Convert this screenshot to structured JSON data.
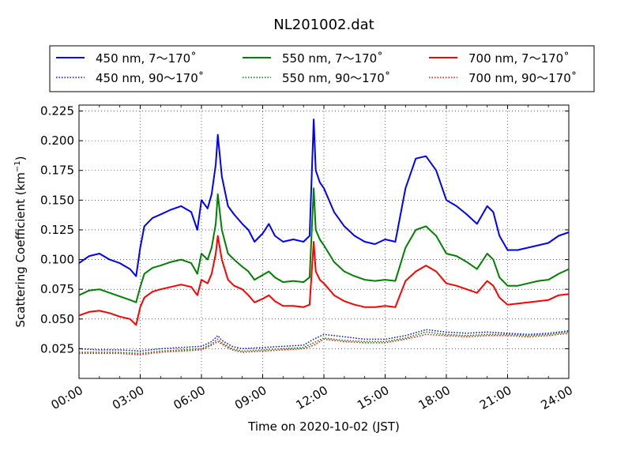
{
  "chart_data": {
    "type": "line",
    "title": "NL201002.dat",
    "xlabel": "Time on 2020-10-02 (JST)",
    "ylabel_main": "Scattering Coefficient (km",
    "ylabel_sup": "−1",
    "ylabel_end": ")",
    "xlim": [
      0,
      24
    ],
    "ylim": [
      0.0,
      0.23
    ],
    "xticks": [
      0,
      3,
      6,
      9,
      12,
      15,
      18,
      21,
      24
    ],
    "xtick_labels": [
      "00:00",
      "03:00",
      "06:00",
      "09:00",
      "12:00",
      "15:00",
      "18:00",
      "21:00",
      "24:00"
    ],
    "yticks": [
      0.025,
      0.05,
      0.075,
      0.1,
      0.125,
      0.15,
      0.175,
      0.2,
      0.225
    ],
    "ytick_labels": [
      "0.025",
      "0.050",
      "0.075",
      "0.100",
      "0.125",
      "0.150",
      "0.175",
      "0.200",
      "0.225"
    ],
    "grid": true,
    "legend_placement": "top, above plot",
    "series": [
      {
        "name": "450 nm, 7～170˚",
        "color": "#0000ff",
        "style": "solid",
        "x": [
          0,
          0.5,
          1,
          1.5,
          2,
          2.5,
          2.8,
          3.0,
          3.2,
          3.6,
          4,
          4.5,
          5,
          5.5,
          5.8,
          6,
          6.3,
          6.5,
          6.7,
          6.8,
          7,
          7.3,
          7.6,
          8,
          8.3,
          8.6,
          9,
          9.3,
          9.6,
          10,
          10.5,
          11,
          11.3,
          11.5,
          11.6,
          11.8,
          12,
          12.5,
          13,
          13.5,
          14,
          14.5,
          15,
          15.5,
          16,
          16.5,
          17,
          17.5,
          18,
          18.5,
          19,
          19.5,
          20,
          20.3,
          20.6,
          21,
          21.5,
          22,
          22.5,
          23,
          23.5,
          24
        ],
        "values": [
          0.097,
          0.103,
          0.105,
          0.1,
          0.097,
          0.092,
          0.086,
          0.11,
          0.128,
          0.135,
          0.138,
          0.142,
          0.145,
          0.14,
          0.125,
          0.15,
          0.143,
          0.155,
          0.18,
          0.205,
          0.17,
          0.145,
          0.138,
          0.13,
          0.125,
          0.115,
          0.122,
          0.13,
          0.12,
          0.115,
          0.117,
          0.115,
          0.12,
          0.218,
          0.175,
          0.165,
          0.16,
          0.14,
          0.128,
          0.12,
          0.115,
          0.113,
          0.117,
          0.115,
          0.16,
          0.185,
          0.187,
          0.175,
          0.15,
          0.145,
          0.138,
          0.13,
          0.145,
          0.14,
          0.12,
          0.108,
          0.108,
          0.11,
          0.112,
          0.114,
          0.12,
          0.123
        ]
      },
      {
        "name": "550 nm, 7～170˚",
        "color": "#008000",
        "style": "solid",
        "x": [
          0,
          0.5,
          1,
          1.5,
          2,
          2.5,
          2.8,
          3.0,
          3.2,
          3.6,
          4,
          4.5,
          5,
          5.5,
          5.8,
          6,
          6.3,
          6.5,
          6.7,
          6.8,
          7,
          7.3,
          7.6,
          8,
          8.3,
          8.6,
          9,
          9.3,
          9.6,
          10,
          10.5,
          11,
          11.3,
          11.5,
          11.6,
          11.8,
          12,
          12.5,
          13,
          13.5,
          14,
          14.5,
          15,
          15.5,
          16,
          16.5,
          17,
          17.5,
          18,
          18.5,
          19,
          19.5,
          20,
          20.3,
          20.6,
          21,
          21.5,
          22,
          22.5,
          23,
          23.5,
          24
        ],
        "values": [
          0.07,
          0.074,
          0.075,
          0.072,
          0.069,
          0.066,
          0.064,
          0.077,
          0.088,
          0.093,
          0.095,
          0.098,
          0.1,
          0.097,
          0.088,
          0.105,
          0.1,
          0.11,
          0.13,
          0.155,
          0.125,
          0.105,
          0.1,
          0.094,
          0.09,
          0.083,
          0.087,
          0.09,
          0.085,
          0.081,
          0.082,
          0.081,
          0.085,
          0.16,
          0.125,
          0.117,
          0.112,
          0.098,
          0.09,
          0.086,
          0.083,
          0.082,
          0.083,
          0.082,
          0.11,
          0.125,
          0.128,
          0.12,
          0.105,
          0.103,
          0.098,
          0.092,
          0.105,
          0.1,
          0.085,
          0.078,
          0.078,
          0.08,
          0.082,
          0.083,
          0.088,
          0.092
        ]
      },
      {
        "name": "700 nm, 7～170˚",
        "color": "#ff0000",
        "style": "solid",
        "x": [
          0,
          0.5,
          1,
          1.5,
          2,
          2.5,
          2.8,
          3.0,
          3.2,
          3.6,
          4,
          4.5,
          5,
          5.5,
          5.8,
          6,
          6.3,
          6.5,
          6.7,
          6.8,
          7,
          7.3,
          7.6,
          8,
          8.3,
          8.6,
          9,
          9.3,
          9.6,
          10,
          10.5,
          11,
          11.3,
          11.5,
          11.6,
          11.8,
          12,
          12.5,
          13,
          13.5,
          14,
          14.5,
          15,
          15.5,
          16,
          16.5,
          17,
          17.5,
          18,
          18.5,
          19,
          19.5,
          20,
          20.3,
          20.6,
          21,
          21.5,
          22,
          22.5,
          23,
          23.5,
          24
        ],
        "values": [
          0.053,
          0.056,
          0.057,
          0.055,
          0.052,
          0.05,
          0.045,
          0.06,
          0.068,
          0.073,
          0.075,
          0.077,
          0.079,
          0.077,
          0.07,
          0.083,
          0.08,
          0.088,
          0.105,
          0.12,
          0.1,
          0.083,
          0.078,
          0.075,
          0.07,
          0.064,
          0.067,
          0.07,
          0.065,
          0.061,
          0.061,
          0.06,
          0.062,
          0.115,
          0.09,
          0.083,
          0.08,
          0.07,
          0.065,
          0.062,
          0.06,
          0.06,
          0.061,
          0.06,
          0.082,
          0.09,
          0.095,
          0.09,
          0.08,
          0.078,
          0.075,
          0.072,
          0.082,
          0.078,
          0.068,
          0.062,
          0.063,
          0.064,
          0.065,
          0.066,
          0.07,
          0.071
        ]
      },
      {
        "name": "450 nm, 90～170˚",
        "color": "#0000ff",
        "style": "dotted",
        "x": [
          0,
          1,
          2,
          3,
          4,
          5,
          6,
          6.5,
          6.8,
          7,
          7.5,
          8,
          9,
          10,
          11,
          11.5,
          12,
          13,
          14,
          15,
          16,
          17,
          18,
          19,
          20,
          21,
          22,
          23,
          24
        ],
        "values": [
          0.025,
          0.024,
          0.024,
          0.023,
          0.025,
          0.026,
          0.027,
          0.031,
          0.036,
          0.032,
          0.027,
          0.025,
          0.026,
          0.027,
          0.028,
          0.033,
          0.037,
          0.035,
          0.033,
          0.033,
          0.036,
          0.041,
          0.039,
          0.038,
          0.039,
          0.038,
          0.037,
          0.038,
          0.04
        ]
      },
      {
        "name": "550 nm, 90～170˚",
        "color": "#008000",
        "style": "dotted",
        "x": [
          0,
          1,
          2,
          3,
          4,
          5,
          6,
          6.5,
          6.8,
          7,
          7.5,
          8,
          9,
          10,
          11,
          11.5,
          12,
          13,
          14,
          15,
          16,
          17,
          18,
          19,
          20,
          21,
          22,
          23,
          24
        ],
        "values": [
          0.022,
          0.022,
          0.022,
          0.021,
          0.023,
          0.024,
          0.025,
          0.029,
          0.033,
          0.03,
          0.025,
          0.023,
          0.024,
          0.025,
          0.026,
          0.03,
          0.034,
          0.032,
          0.031,
          0.031,
          0.034,
          0.039,
          0.037,
          0.036,
          0.037,
          0.037,
          0.036,
          0.037,
          0.039
        ]
      },
      {
        "name": "700 nm, 90～170˚",
        "color": "#ff0000",
        "style": "dotted",
        "x": [
          0,
          1,
          2,
          3,
          4,
          5,
          6,
          6.5,
          6.8,
          7,
          7.5,
          8,
          9,
          10,
          11,
          11.5,
          12,
          13,
          14,
          15,
          16,
          17,
          18,
          19,
          20,
          21,
          22,
          23,
          24
        ],
        "values": [
          0.021,
          0.021,
          0.021,
          0.02,
          0.022,
          0.023,
          0.024,
          0.028,
          0.031,
          0.029,
          0.024,
          0.022,
          0.023,
          0.024,
          0.025,
          0.028,
          0.033,
          0.031,
          0.03,
          0.03,
          0.033,
          0.037,
          0.036,
          0.035,
          0.036,
          0.036,
          0.035,
          0.036,
          0.038
        ]
      }
    ]
  },
  "legend": {
    "layout": [
      [
        "450 nm, 7～170˚",
        "550 nm, 7～170˚",
        "700 nm, 7～170˚"
      ],
      [
        "450 nm, 90～170˚",
        "550 nm, 90～170˚",
        "700 nm, 90～170˚"
      ]
    ]
  }
}
